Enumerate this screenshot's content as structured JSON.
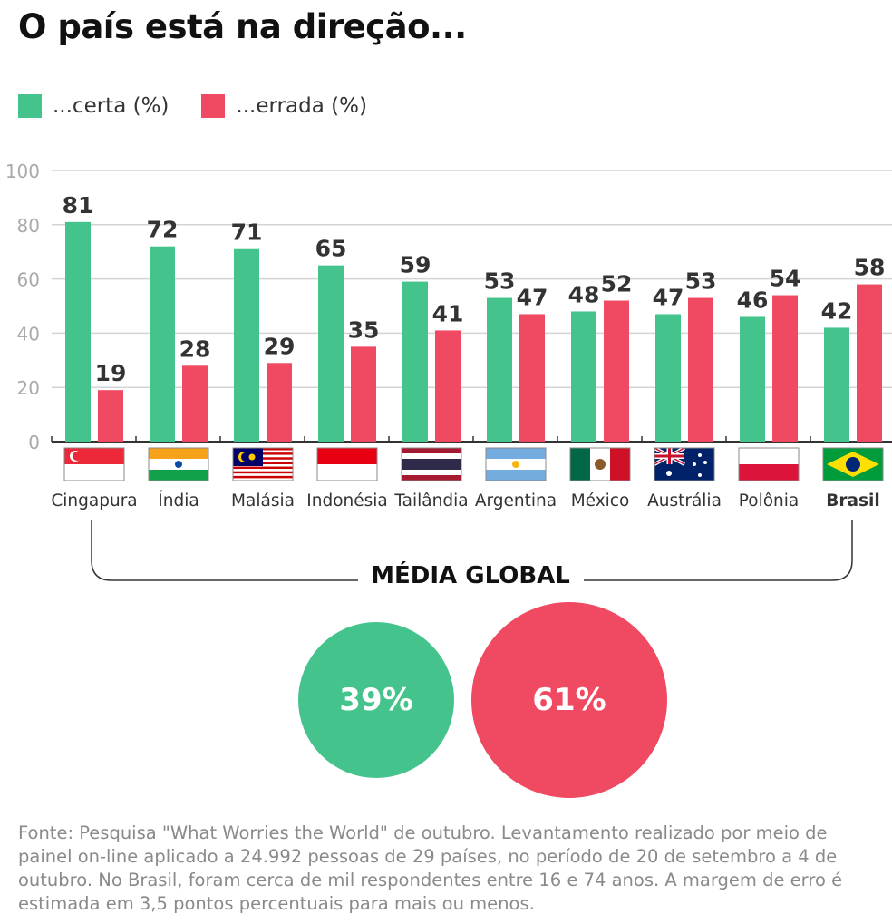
{
  "title": "O país está na direção...",
  "chart_data": {
    "type": "bar",
    "categories": [
      "Cingapura",
      "Índia",
      "Malásia",
      "Indonésia",
      "Tailândia",
      "Argentina",
      "México",
      "Austrália",
      "Polônia",
      "Brasil"
    ],
    "series": [
      {
        "name": "...certa (%)",
        "color": "#44c48c",
        "values": [
          81,
          72,
          71,
          65,
          59,
          53,
          48,
          47,
          46,
          42
        ]
      },
      {
        "name": "...errada (%)",
        "color": "#ef4a62",
        "values": [
          19,
          28,
          29,
          35,
          41,
          47,
          52,
          53,
          54,
          58
        ]
      }
    ],
    "ylim": [
      0,
      100
    ],
    "yticks": [
      "0",
      "20",
      "40",
      "60",
      "80",
      "100"
    ],
    "grid": true,
    "legend": "top-left",
    "highlighted_category": "Brasil"
  },
  "media_global": {
    "label": "MÉDIA GLOBAL",
    "certa": "39%",
    "errada": "61%",
    "certa_value": 39,
    "errada_value": 61
  },
  "footer": "Fonte: Pesquisa \"What Worries the World\" de outubro. Levantamento realizado por meio de painel on-line aplicado a 24.992 pessoas de 29 países, no período de 20 de setembro a 4 de outubro. No Brasil, foram cerca de mil respondentes entre 16 e 74 anos. A margem de erro é estimada em 3,5 pontos percentuais para mais ou menos."
}
